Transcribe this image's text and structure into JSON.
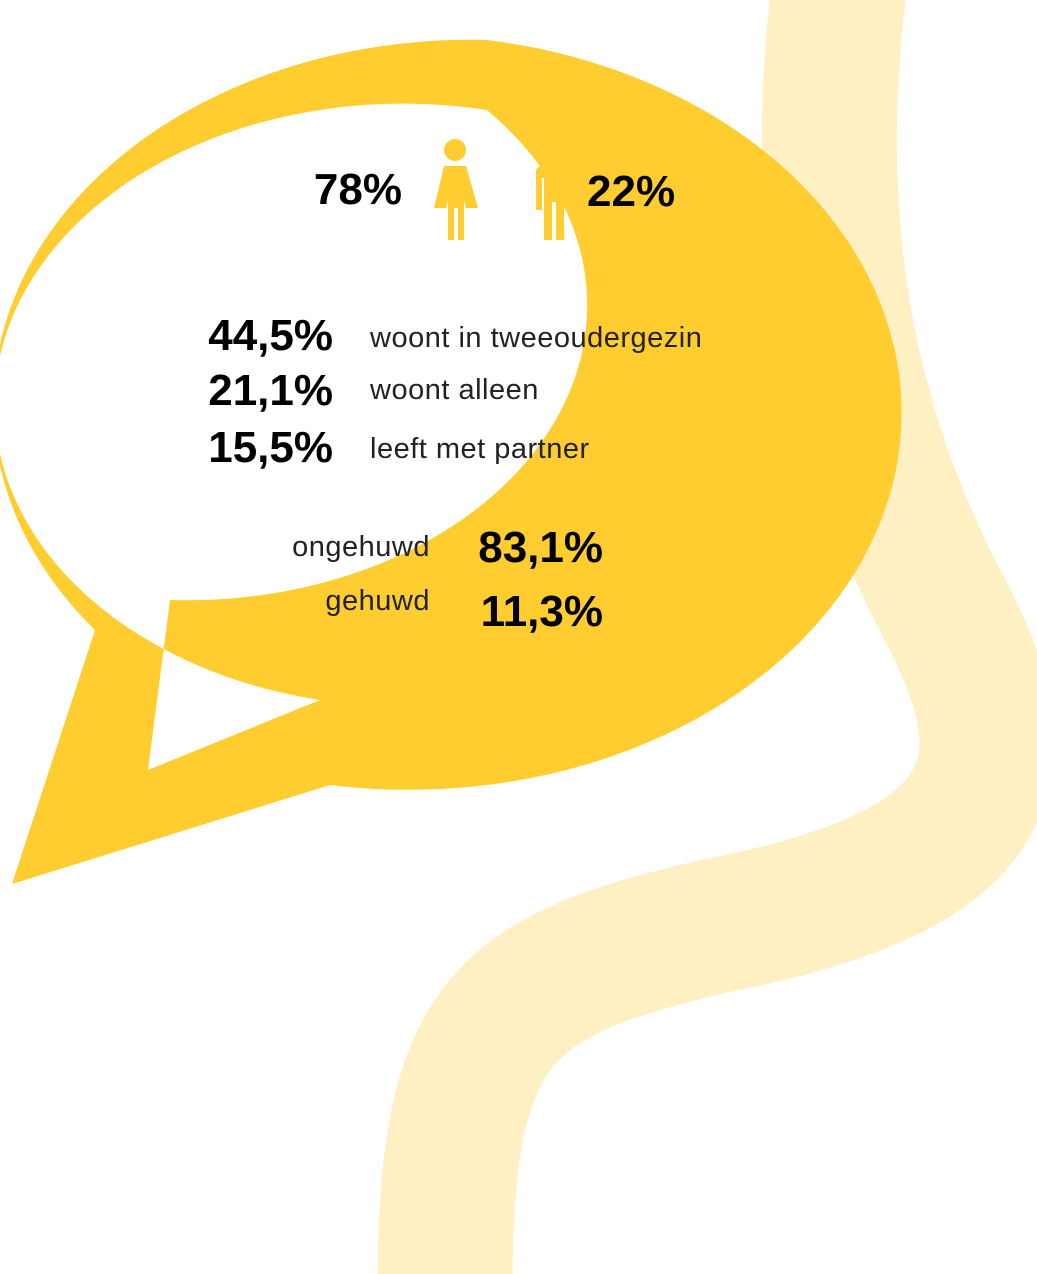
{
  "gender": [
    {
      "value": "78%"
    },
    {
      "value": "22%"
    }
  ],
  "household": [
    {
      "value": "44,5%",
      "label": "woont in tweeoudergezin"
    },
    {
      "value": "21,1%",
      "label": "woont alleen"
    },
    {
      "value": "15,5%",
      "label": "leeft met partner"
    }
  ],
  "marital": [
    {
      "label": "ongehuwd",
      "value": "83,1%"
    },
    {
      "label": "gehuwd",
      "value": "11,3%"
    }
  ]
}
